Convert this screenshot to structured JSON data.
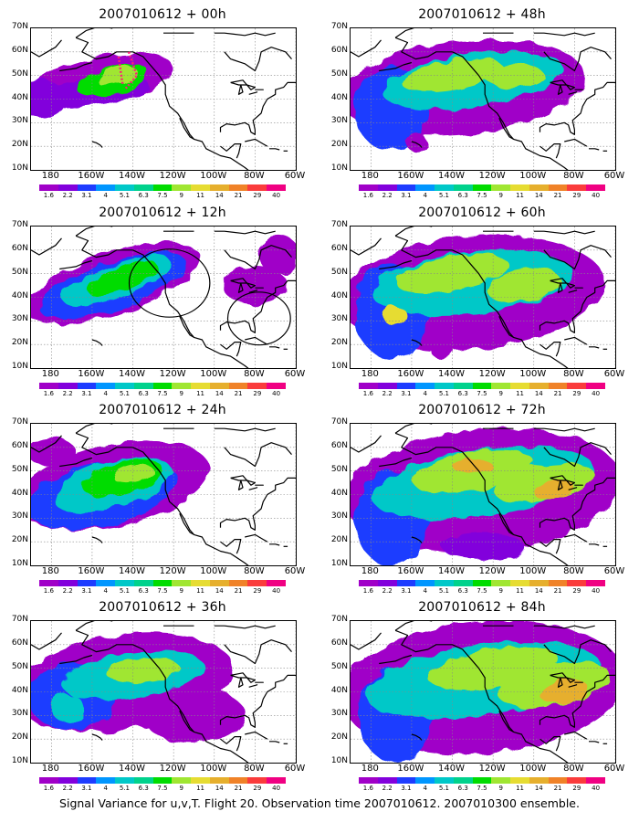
{
  "caption": "Signal Variance for u,v,T. Flight 20. Observation time 2007010612. 2007010300 ensemble.",
  "panels": [
    {
      "title": "2007010612 + 00h",
      "hours": 0
    },
    {
      "title": "2007010612 + 48h",
      "hours": 48
    },
    {
      "title": "2007010612 + 12h",
      "hours": 12
    },
    {
      "title": "2007010612 + 60h",
      "hours": 60
    },
    {
      "title": "2007010612 + 24h",
      "hours": 24
    },
    {
      "title": "2007010612 + 72h",
      "hours": 72
    },
    {
      "title": "2007010612 + 36h",
      "hours": 36
    },
    {
      "title": "2007010612 + 84h",
      "hours": 84
    }
  ],
  "y_ticks": [
    "70N",
    "60N",
    "50N",
    "40N",
    "30N",
    "20N",
    "10N"
  ],
  "x_ticks": [
    "180",
    "160W",
    "140W",
    "120W",
    "100W",
    "80W",
    "60W"
  ],
  "colorbar": {
    "labels": [
      "1.6",
      "2.2",
      "3.1",
      "4",
      "5.1",
      "6.3",
      "7.5",
      "9",
      "11",
      "14",
      "21",
      "29",
      "40"
    ],
    "colors": [
      "#a000c8",
      "#8200dc",
      "#1e3cff",
      "#0096ff",
      "#00c8c8",
      "#00d28c",
      "#00dc00",
      "#a0e632",
      "#e6dc32",
      "#e6af2d",
      "#f08228",
      "#fa3c3c",
      "#f00082"
    ]
  },
  "map_extent": {
    "lon": [
      -190,
      -60
    ],
    "lat": [
      10,
      70
    ]
  },
  "chart_data": {
    "type": "heatmap",
    "title": "Signal Variance for u,v,T. Flight 20. Observation time 2007010612. 2007010300 ensemble.",
    "forecast_hours": [
      0,
      12,
      24,
      36,
      48,
      60,
      72,
      84
    ],
    "levels": [
      1.6,
      2.2,
      3.1,
      4,
      5.1,
      6.3,
      7.5,
      9,
      11,
      14,
      21,
      29,
      40
    ],
    "lon_range": [
      -190,
      -60
    ],
    "lat_range": [
      10,
      70
    ],
    "grid": true
  }
}
